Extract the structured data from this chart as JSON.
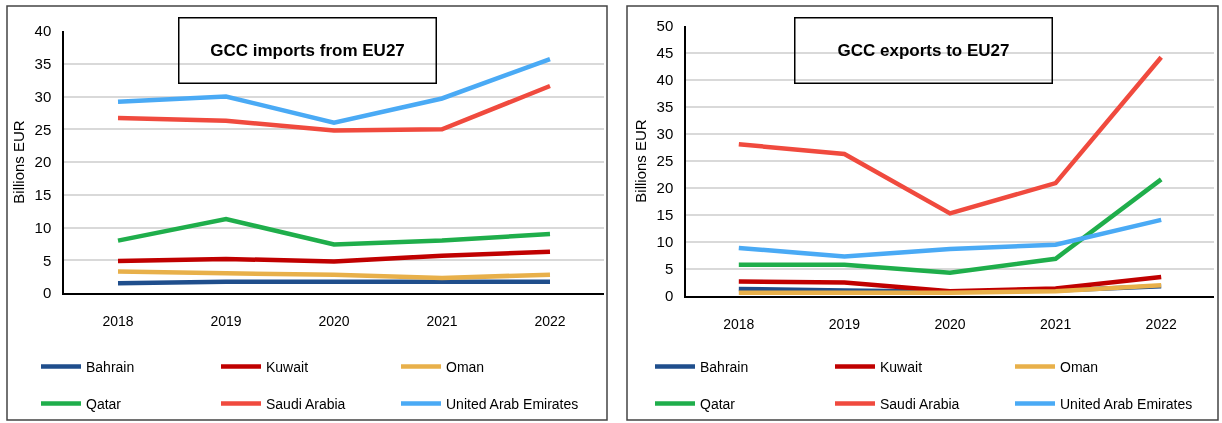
{
  "chart_data": [
    {
      "type": "line",
      "title": "GCC imports from EU27",
      "ylabel": "Billions EUR",
      "categories": [
        "2018",
        "2019",
        "2020",
        "2021",
        "2022"
      ],
      "series": [
        {
          "name": "Bahrain",
          "color": "#1f4e8c",
          "values": [
            1.5,
            1.7,
            1.7,
            1.7,
            1.7
          ]
        },
        {
          "name": "Kuwait",
          "color": "#c00000",
          "values": [
            4.9,
            5.2,
            4.8,
            5.7,
            6.3
          ]
        },
        {
          "name": "Oman",
          "color": "#e8b04a",
          "values": [
            3.3,
            3.0,
            2.8,
            2.3,
            2.8
          ]
        },
        {
          "name": "Qatar",
          "color": "#1fae4b",
          "values": [
            8.0,
            11.3,
            7.4,
            8.0,
            9.0
          ]
        },
        {
          "name": "Saudi Arabia",
          "color": "#f04a3e",
          "values": [
            26.7,
            26.3,
            24.8,
            25.0,
            31.6
          ]
        },
        {
          "name": "United Arab Emirates",
          "color": "#4aaaf5",
          "values": [
            29.2,
            30.0,
            26.0,
            29.7,
            35.7
          ]
        }
      ],
      "ylim": [
        0,
        40
      ],
      "yticks": [
        0,
        5,
        10,
        15,
        20,
        25,
        30,
        35,
        40
      ],
      "grid": "y",
      "legend": "bottom"
    },
    {
      "type": "line",
      "title": "GCC exports to EU27",
      "ylabel": "Billions EUR",
      "categories": [
        "2018",
        "2019",
        "2020",
        "2021",
        "2022"
      ],
      "series": [
        {
          "name": "Bahrain",
          "color": "#1f4e8c",
          "values": [
            1.3,
            1.0,
            0.8,
            1.0,
            1.8
          ]
        },
        {
          "name": "Kuwait",
          "color": "#c00000",
          "values": [
            2.7,
            2.5,
            0.9,
            1.4,
            3.5
          ]
        },
        {
          "name": "Oman",
          "color": "#e8b04a",
          "values": [
            0.6,
            0.6,
            0.6,
            0.9,
            2.0
          ]
        },
        {
          "name": "Qatar",
          "color": "#1fae4b",
          "values": [
            5.8,
            5.8,
            4.3,
            6.9,
            21.6
          ]
        },
        {
          "name": "Saudi Arabia",
          "color": "#f04a3e",
          "values": [
            28.1,
            26.3,
            15.3,
            20.9,
            44.2
          ]
        },
        {
          "name": "United Arab Emirates",
          "color": "#4aaaf5",
          "values": [
            8.9,
            7.3,
            8.7,
            9.5,
            14.1
          ]
        }
      ],
      "ylim": [
        0,
        50
      ],
      "yticks": [
        0,
        5,
        10,
        15,
        20,
        25,
        30,
        35,
        40,
        45,
        50
      ],
      "grid": "y",
      "legend": "bottom"
    }
  ]
}
